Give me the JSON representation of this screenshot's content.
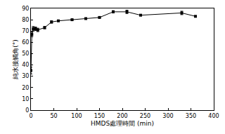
{
  "chart_data": {
    "type": "line",
    "x_label": "HMDS處理時間 (min)",
    "y_label": "純水接觸角(°)",
    "x": [
      0,
      2,
      5,
      10,
      15,
      30,
      45,
      60,
      90,
      120,
      150,
      180,
      210,
      240,
      330,
      360
    ],
    "values": [
      35,
      67,
      72,
      72,
      71,
      73,
      78,
      79,
      80,
      81,
      82,
      87,
      87,
      84,
      86,
      83
    ],
    "errors": [
      3,
      2,
      2,
      1.5,
      1.5,
      1,
      1,
      0.5,
      0.5,
      0.5,
      0.5,
      1,
      1.5,
      0.5,
      1.5,
      0.5
    ],
    "color": "#000000",
    "marker": "square",
    "xlim": [
      0,
      400
    ],
    "xticks": [
      0,
      50,
      100,
      150,
      200,
      250,
      300,
      350,
      400
    ],
    "ylim": [
      0,
      90
    ],
    "yticks": [
      0,
      10,
      20,
      30,
      40,
      50,
      60,
      70,
      80,
      90
    ],
    "grid": false
  }
}
